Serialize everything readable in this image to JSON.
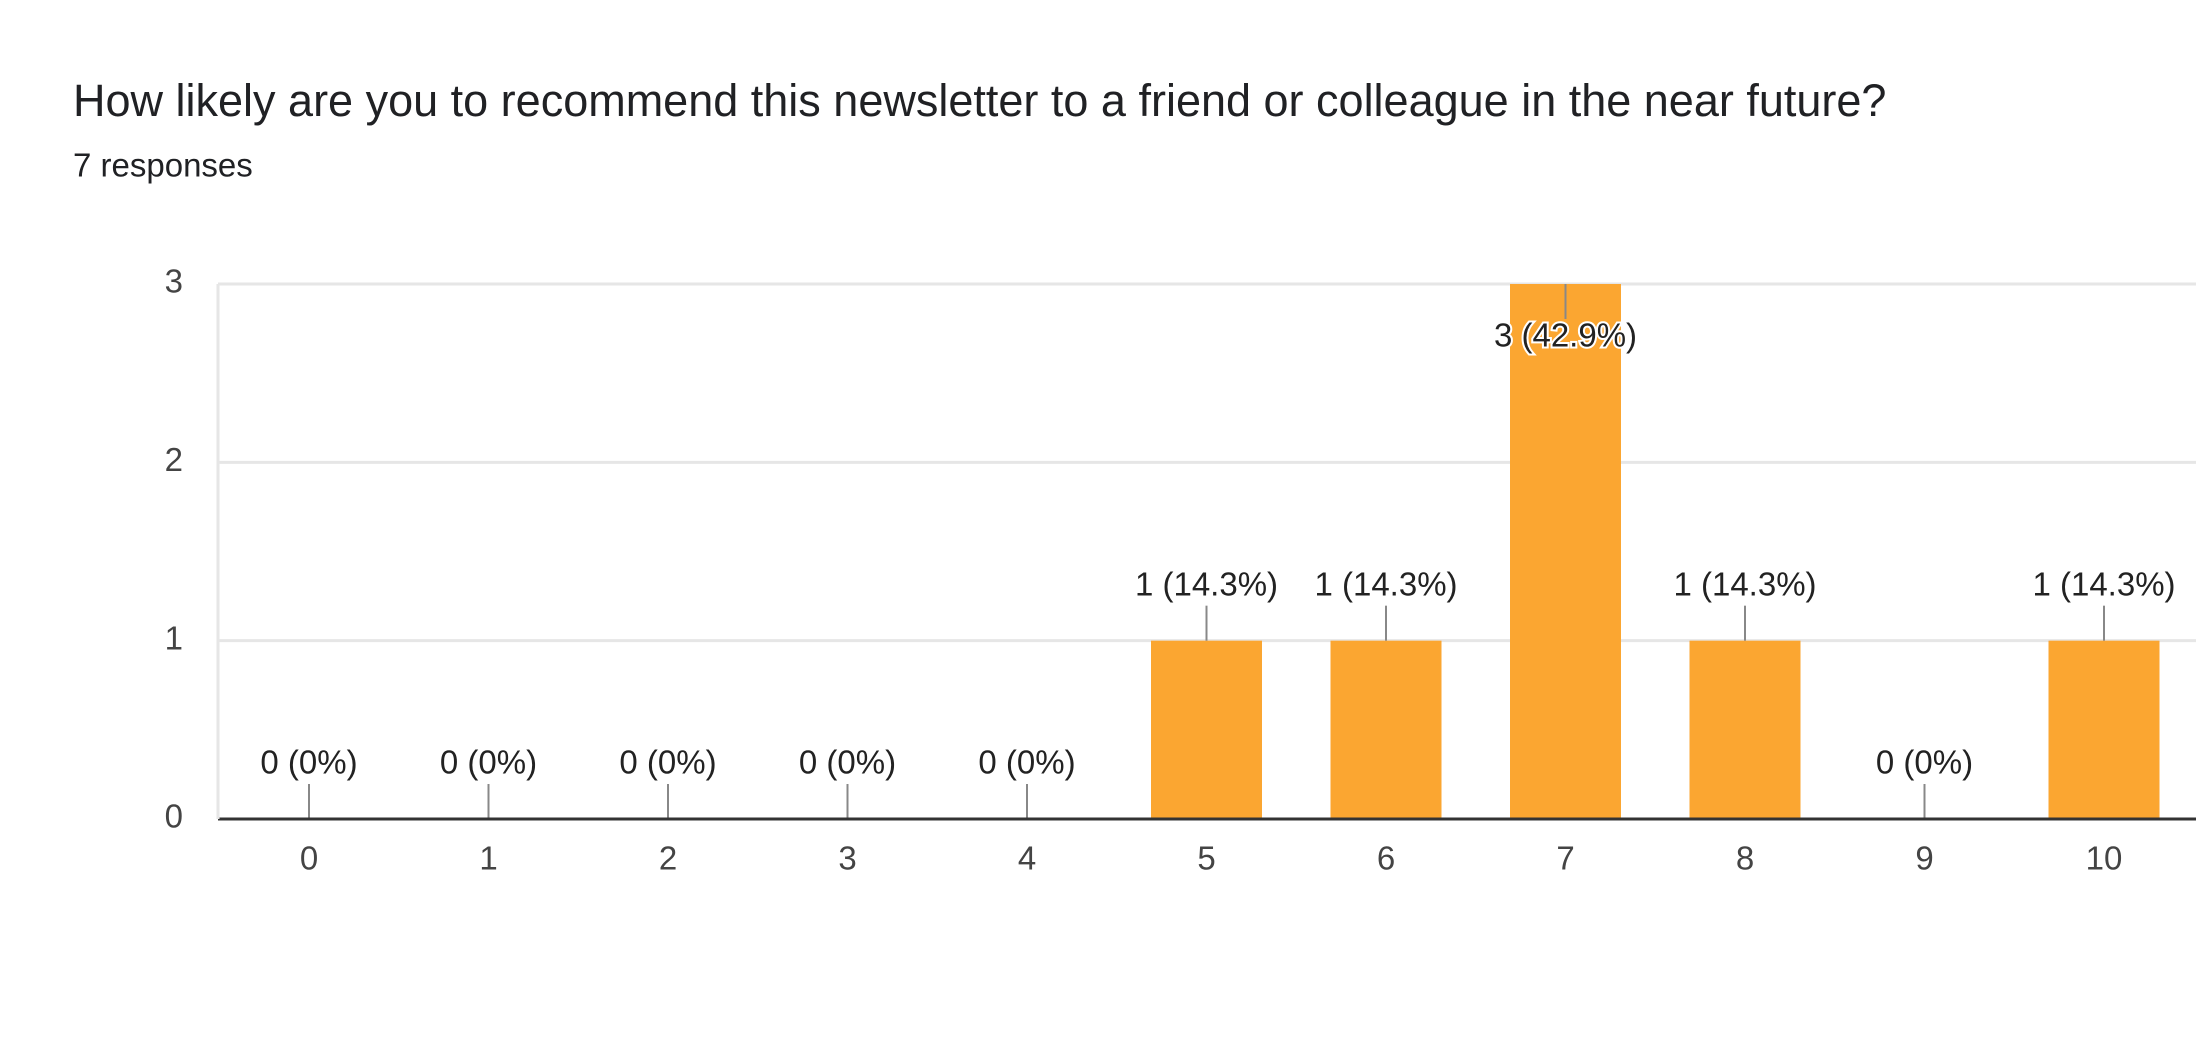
{
  "chart_data": {
    "type": "bar",
    "title": "How likely are you to recommend this newsletter to a friend or colleague in the near future?",
    "subtitle": "7 responses",
    "categories": [
      "0",
      "1",
      "2",
      "3",
      "4",
      "5",
      "6",
      "7",
      "8",
      "9",
      "10"
    ],
    "values": [
      0,
      0,
      0,
      0,
      0,
      1,
      1,
      3,
      1,
      0,
      1
    ],
    "value_labels": [
      "0 (0%)",
      "0 (0%)",
      "0 (0%)",
      "0 (0%)",
      "0 (0%)",
      "1 (14.3%)",
      "1 (14.3%)",
      "3 (42.9%)",
      "1 (14.3%)",
      "0 (0%)",
      "1 (14.3%)"
    ],
    "color": "#fba631",
    "ylim": [
      0,
      3
    ],
    "yticks": [
      0,
      1,
      2,
      3
    ],
    "grid": true
  }
}
